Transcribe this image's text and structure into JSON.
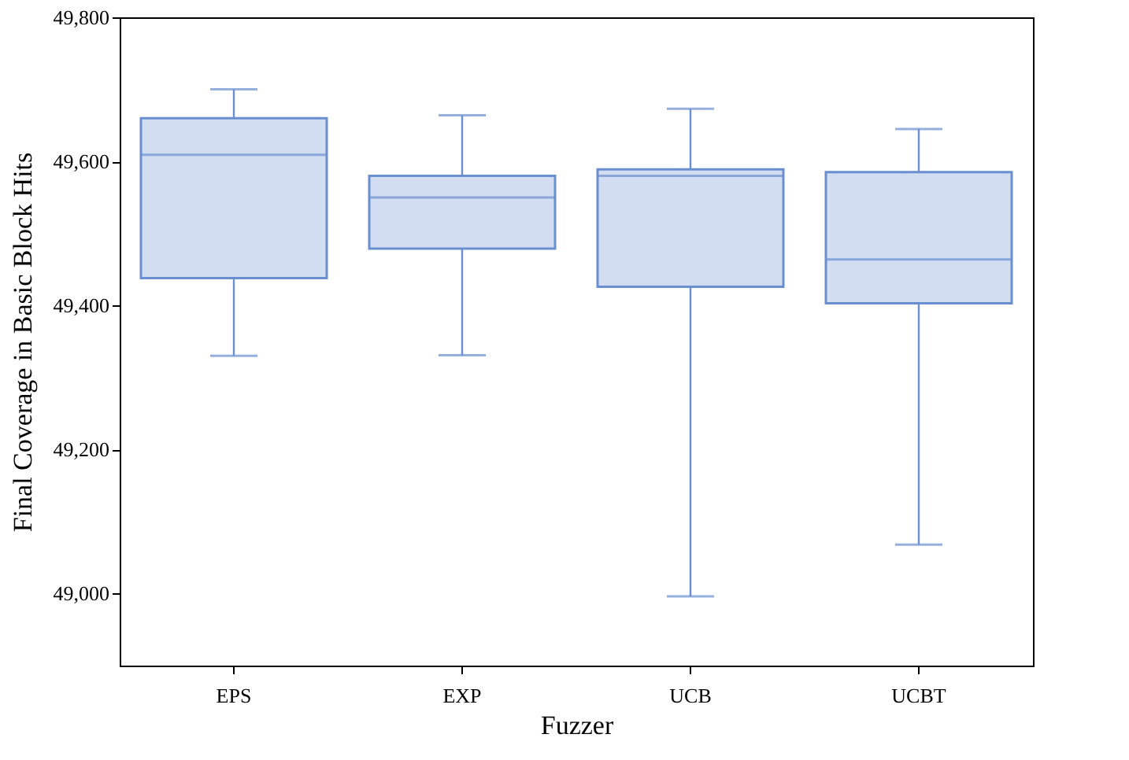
{
  "chart_data": {
    "type": "box",
    "xlabel": "Fuzzer",
    "ylabel": "Final Coverage in Basic Block Hits",
    "categories": [
      "EPS",
      "EXP",
      "UCB",
      "UCBT"
    ],
    "boxes": [
      {
        "low": 49330,
        "q1": 49438,
        "median": 49609,
        "q3": 49660,
        "high": 49700
      },
      {
        "low": 49331,
        "q1": 49479,
        "median": 49550,
        "q3": 49580,
        "high": 49664
      },
      {
        "low": 48996,
        "q1": 49426,
        "median": 49580,
        "q3": 49589,
        "high": 49673
      },
      {
        "low": 49068,
        "q1": 49403,
        "median": 49464,
        "q3": 49585,
        "high": 49645
      }
    ],
    "color": "#6a8fd0",
    "ylim": [
      48900,
      49800
    ],
    "yticks": [
      {
        "value": 49000,
        "label": "49,000"
      },
      {
        "value": 49200,
        "label": "49,200"
      },
      {
        "value": 49400,
        "label": "49,400"
      },
      {
        "value": 49600,
        "label": "49,600"
      },
      {
        "value": 49800,
        "label": "49,800"
      }
    ],
    "grid": false
  }
}
